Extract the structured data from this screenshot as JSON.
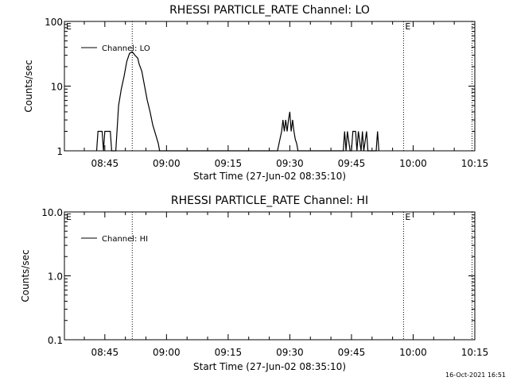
{
  "footer": {
    "timestamp": "16-Oct-2021 16:51"
  },
  "chart_data": [
    {
      "type": "line",
      "title": "RHESSI PARTICLE_RATE Channel: LO",
      "xlabel": "Start Time (27-Jun-02 08:35:10)",
      "ylabel": "Counts/sec",
      "y_scale": "log",
      "xlim": [
        "08:35:10",
        "10:15:00"
      ],
      "ylim": [
        1,
        100
      ],
      "x_ticks": [
        "08:45",
        "09:00",
        "09:15",
        "09:30",
        "09:45",
        "10:00",
        "10:15"
      ],
      "y_ticks": [
        "1",
        "10",
        "100"
      ],
      "legend": {
        "position": "top-left",
        "entries": [
          "Channel: LO"
        ]
      },
      "event_markers": [
        {
          "time": "08:35:10",
          "label": "E",
          "line": false
        },
        {
          "time": "08:51:40",
          "label": "",
          "line": true
        },
        {
          "time": "09:57:40",
          "label": "E",
          "line": true
        },
        {
          "time": "10:14:20",
          "label": "",
          "line": true
        }
      ],
      "series": [
        {
          "name": "Channel: LO",
          "x": [
            "08:43:00",
            "08:43:20",
            "08:44:20",
            "08:44:40",
            "08:45:00",
            "08:46:20",
            "08:46:40",
            "08:47:40",
            "08:48:20",
            "08:49:00",
            "08:49:40",
            "08:50:20",
            "08:51:00",
            "08:51:40",
            "08:52:20",
            "08:53:00",
            "08:53:20",
            "08:54:00",
            "08:54:40",
            "08:55:20",
            "08:56:00",
            "08:56:40",
            "08:57:20",
            "08:58:00",
            "08:58:20",
            "09:27:00",
            "09:28:00",
            "09:28:20",
            "09:28:40",
            "09:29:00",
            "09:29:20",
            "09:29:40",
            "09:30:00",
            "09:30:20",
            "09:30:40",
            "09:31:00",
            "09:31:20",
            "09:31:40",
            "09:32:00",
            "09:33:00",
            "09:43:00",
            "09:43:20",
            "09:43:40",
            "09:44:00",
            "09:44:40",
            "09:45:00",
            "09:45:20",
            "09:46:00",
            "09:46:20",
            "09:46:40",
            "09:47:20",
            "09:47:40",
            "09:48:00",
            "09:48:40",
            "09:49:00",
            "09:49:20",
            "09:51:00",
            "09:51:20",
            "09:51:40"
          ],
          "y": [
            1,
            2,
            2,
            1,
            2,
            2,
            1,
            1,
            5,
            9,
            14,
            24,
            32,
            34,
            30,
            27,
            22,
            17,
            10,
            6,
            4,
            2.5,
            1.8,
            1.3,
            1,
            1,
            2,
            3,
            2,
            3,
            2,
            3,
            4,
            2,
            3,
            2,
            1.5,
            1.3,
            1,
            1,
            1,
            2,
            1,
            2,
            1,
            1,
            2,
            2,
            1,
            2,
            1,
            2,
            1,
            2,
            1,
            1,
            1,
            2,
            1
          ]
        }
      ]
    },
    {
      "type": "line",
      "title": "RHESSI PARTICLE_RATE Channel: HI",
      "xlabel": "Start Time (27-Jun-02 08:35:10)",
      "ylabel": "Counts/sec",
      "y_scale": "log",
      "xlim": [
        "08:35:10",
        "10:15:00"
      ],
      "ylim": [
        0.1,
        10
      ],
      "x_ticks": [
        "08:45",
        "09:00",
        "09:15",
        "09:30",
        "09:45",
        "10:00",
        "10:15"
      ],
      "y_ticks": [
        "0.1",
        "1.0",
        "10.0"
      ],
      "legend": {
        "position": "top-left",
        "entries": [
          "Channel: HI"
        ]
      },
      "event_markers": [
        {
          "time": "08:35:10",
          "label": "E",
          "line": false
        },
        {
          "time": "08:51:40",
          "label": "",
          "line": true
        },
        {
          "time": "09:57:40",
          "label": "E",
          "line": true
        },
        {
          "time": "10:14:20",
          "label": "",
          "line": true
        }
      ],
      "series": [
        {
          "name": "Channel: HI",
          "x": [],
          "y": []
        }
      ]
    }
  ]
}
